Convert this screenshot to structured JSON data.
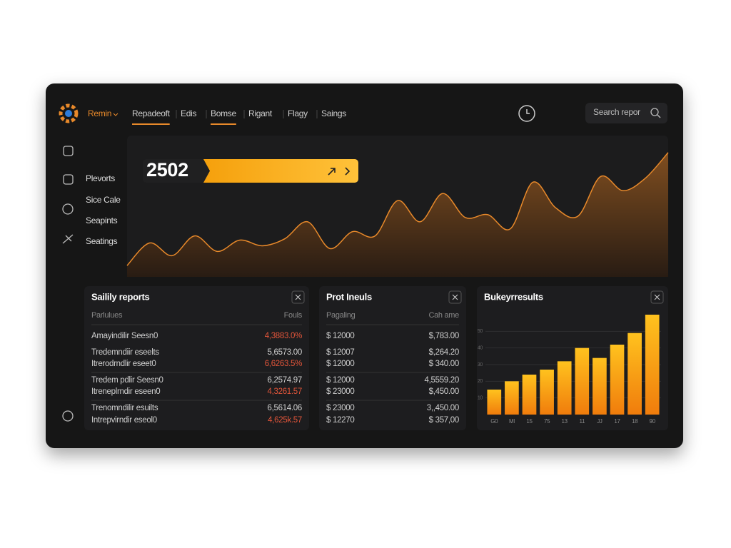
{
  "nav": {
    "brand": "Remin",
    "items": [
      "Repadeoft",
      "Edis",
      "Bomse",
      "Rigant",
      "Flagy",
      "Saings"
    ],
    "active": [
      0,
      2
    ]
  },
  "search": {
    "placeholder": "Search repor"
  },
  "sidebar": {
    "items": [
      "Plevorts",
      "Sice Cale",
      "Seapints",
      "Seatings"
    ]
  },
  "hero": {
    "value": "2502",
    "values": [
      8,
      24,
      15,
      29,
      18,
      26,
      22,
      27,
      39,
      20,
      32,
      29,
      54,
      39,
      59,
      42,
      44,
      34,
      67,
      49,
      43,
      71,
      61,
      70,
      88
    ],
    "ylim": [
      0,
      100
    ],
    "line_color": "#e8892a"
  },
  "tables": [
    {
      "title": "Sailily reports",
      "columns": [
        "Parlulues",
        "Fouls"
      ],
      "groups": [
        [
          {
            "label": "Amayindilir Seesn0",
            "value": "4,3883.0%",
            "color": "#e2553a"
          },
          {
            "label": "Tredemndiir eseelts",
            "value": "5,6573.00"
          },
          {
            "label": "Itrerodrndlir eseet0",
            "value": "6,6263.5%",
            "color": "#e2553a"
          }
        ],
        [
          {
            "label": "Tredem pdlir Seesn0",
            "value": "6,2574.97"
          },
          {
            "label": "Itreneplrndir eseen0",
            "value": "4,3261.57",
            "color": "#e2553a"
          }
        ],
        [
          {
            "label": "Trenomndilir esuilts",
            "value": "6,5614.06"
          },
          {
            "label": "Intrepvirndir eseol0",
            "value": "4,625k.57",
            "color": "#e2553a"
          }
        ]
      ]
    },
    {
      "title": "Prot Ineuls",
      "columns": [
        "Pagaling",
        "Cah ame"
      ],
      "groups": [
        [
          {
            "label": "$ 12000",
            "value": "$,783.00"
          },
          {
            "label": "$ 12007",
            "value": "$,264.20"
          },
          {
            "label": "$ 12000",
            "value": "$ 340.00"
          }
        ],
        [
          {
            "label": "$ 12000",
            "value": "4,5559.20"
          },
          {
            "label": "$ 23000",
            "value": "$,450.00"
          }
        ],
        [
          {
            "label": "$ 23000",
            "value": "3,,450.00"
          },
          {
            "label": "$ 12270",
            "value": "$ 357,00"
          }
        ]
      ]
    }
  ],
  "bar_chart": {
    "type": "bar",
    "title": "Bukeyrresults",
    "categories": [
      "G0",
      "Ml",
      "15",
      "75",
      "13",
      "11",
      "JJ",
      "17",
      "18",
      "90"
    ],
    "values": [
      15,
      20,
      24,
      27,
      32,
      40,
      34,
      42,
      49,
      60
    ],
    "ylim": [
      0,
      60
    ],
    "yticks": [
      10,
      20,
      30,
      40,
      50
    ],
    "grid": true
  }
}
